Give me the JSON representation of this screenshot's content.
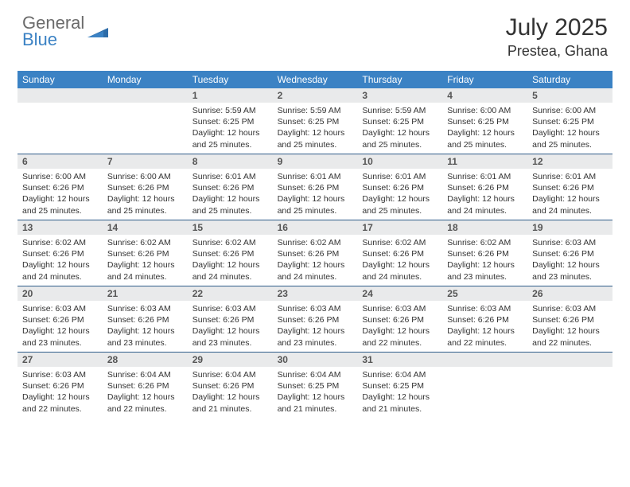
{
  "brand": {
    "general": "General",
    "blue": "Blue"
  },
  "title": {
    "month": "July 2025",
    "location": "Prestea, Ghana"
  },
  "colors": {
    "headerBar": "#3b82c4",
    "weekDivider": "#2f5d8a",
    "dayBar": "#e9eaeb"
  },
  "dow": [
    "Sunday",
    "Monday",
    "Tuesday",
    "Wednesday",
    "Thursday",
    "Friday",
    "Saturday"
  ],
  "weeks": [
    [
      null,
      null,
      {
        "n": "1",
        "sr": "Sunrise: 5:59 AM",
        "ss": "Sunset: 6:25 PM",
        "d1": "Daylight: 12 hours",
        "d2": "and 25 minutes."
      },
      {
        "n": "2",
        "sr": "Sunrise: 5:59 AM",
        "ss": "Sunset: 6:25 PM",
        "d1": "Daylight: 12 hours",
        "d2": "and 25 minutes."
      },
      {
        "n": "3",
        "sr": "Sunrise: 5:59 AM",
        "ss": "Sunset: 6:25 PM",
        "d1": "Daylight: 12 hours",
        "d2": "and 25 minutes."
      },
      {
        "n": "4",
        "sr": "Sunrise: 6:00 AM",
        "ss": "Sunset: 6:25 PM",
        "d1": "Daylight: 12 hours",
        "d2": "and 25 minutes."
      },
      {
        "n": "5",
        "sr": "Sunrise: 6:00 AM",
        "ss": "Sunset: 6:25 PM",
        "d1": "Daylight: 12 hours",
        "d2": "and 25 minutes."
      }
    ],
    [
      {
        "n": "6",
        "sr": "Sunrise: 6:00 AM",
        "ss": "Sunset: 6:26 PM",
        "d1": "Daylight: 12 hours",
        "d2": "and 25 minutes."
      },
      {
        "n": "7",
        "sr": "Sunrise: 6:00 AM",
        "ss": "Sunset: 6:26 PM",
        "d1": "Daylight: 12 hours",
        "d2": "and 25 minutes."
      },
      {
        "n": "8",
        "sr": "Sunrise: 6:01 AM",
        "ss": "Sunset: 6:26 PM",
        "d1": "Daylight: 12 hours",
        "d2": "and 25 minutes."
      },
      {
        "n": "9",
        "sr": "Sunrise: 6:01 AM",
        "ss": "Sunset: 6:26 PM",
        "d1": "Daylight: 12 hours",
        "d2": "and 25 minutes."
      },
      {
        "n": "10",
        "sr": "Sunrise: 6:01 AM",
        "ss": "Sunset: 6:26 PM",
        "d1": "Daylight: 12 hours",
        "d2": "and 25 minutes."
      },
      {
        "n": "11",
        "sr": "Sunrise: 6:01 AM",
        "ss": "Sunset: 6:26 PM",
        "d1": "Daylight: 12 hours",
        "d2": "and 24 minutes."
      },
      {
        "n": "12",
        "sr": "Sunrise: 6:01 AM",
        "ss": "Sunset: 6:26 PM",
        "d1": "Daylight: 12 hours",
        "d2": "and 24 minutes."
      }
    ],
    [
      {
        "n": "13",
        "sr": "Sunrise: 6:02 AM",
        "ss": "Sunset: 6:26 PM",
        "d1": "Daylight: 12 hours",
        "d2": "and 24 minutes."
      },
      {
        "n": "14",
        "sr": "Sunrise: 6:02 AM",
        "ss": "Sunset: 6:26 PM",
        "d1": "Daylight: 12 hours",
        "d2": "and 24 minutes."
      },
      {
        "n": "15",
        "sr": "Sunrise: 6:02 AM",
        "ss": "Sunset: 6:26 PM",
        "d1": "Daylight: 12 hours",
        "d2": "and 24 minutes."
      },
      {
        "n": "16",
        "sr": "Sunrise: 6:02 AM",
        "ss": "Sunset: 6:26 PM",
        "d1": "Daylight: 12 hours",
        "d2": "and 24 minutes."
      },
      {
        "n": "17",
        "sr": "Sunrise: 6:02 AM",
        "ss": "Sunset: 6:26 PM",
        "d1": "Daylight: 12 hours",
        "d2": "and 24 minutes."
      },
      {
        "n": "18",
        "sr": "Sunrise: 6:02 AM",
        "ss": "Sunset: 6:26 PM",
        "d1": "Daylight: 12 hours",
        "d2": "and 23 minutes."
      },
      {
        "n": "19",
        "sr": "Sunrise: 6:03 AM",
        "ss": "Sunset: 6:26 PM",
        "d1": "Daylight: 12 hours",
        "d2": "and 23 minutes."
      }
    ],
    [
      {
        "n": "20",
        "sr": "Sunrise: 6:03 AM",
        "ss": "Sunset: 6:26 PM",
        "d1": "Daylight: 12 hours",
        "d2": "and 23 minutes."
      },
      {
        "n": "21",
        "sr": "Sunrise: 6:03 AM",
        "ss": "Sunset: 6:26 PM",
        "d1": "Daylight: 12 hours",
        "d2": "and 23 minutes."
      },
      {
        "n": "22",
        "sr": "Sunrise: 6:03 AM",
        "ss": "Sunset: 6:26 PM",
        "d1": "Daylight: 12 hours",
        "d2": "and 23 minutes."
      },
      {
        "n": "23",
        "sr": "Sunrise: 6:03 AM",
        "ss": "Sunset: 6:26 PM",
        "d1": "Daylight: 12 hours",
        "d2": "and 23 minutes."
      },
      {
        "n": "24",
        "sr": "Sunrise: 6:03 AM",
        "ss": "Sunset: 6:26 PM",
        "d1": "Daylight: 12 hours",
        "d2": "and 22 minutes."
      },
      {
        "n": "25",
        "sr": "Sunrise: 6:03 AM",
        "ss": "Sunset: 6:26 PM",
        "d1": "Daylight: 12 hours",
        "d2": "and 22 minutes."
      },
      {
        "n": "26",
        "sr": "Sunrise: 6:03 AM",
        "ss": "Sunset: 6:26 PM",
        "d1": "Daylight: 12 hours",
        "d2": "and 22 minutes."
      }
    ],
    [
      {
        "n": "27",
        "sr": "Sunrise: 6:03 AM",
        "ss": "Sunset: 6:26 PM",
        "d1": "Daylight: 12 hours",
        "d2": "and 22 minutes."
      },
      {
        "n": "28",
        "sr": "Sunrise: 6:04 AM",
        "ss": "Sunset: 6:26 PM",
        "d1": "Daylight: 12 hours",
        "d2": "and 22 minutes."
      },
      {
        "n": "29",
        "sr": "Sunrise: 6:04 AM",
        "ss": "Sunset: 6:26 PM",
        "d1": "Daylight: 12 hours",
        "d2": "and 21 minutes."
      },
      {
        "n": "30",
        "sr": "Sunrise: 6:04 AM",
        "ss": "Sunset: 6:25 PM",
        "d1": "Daylight: 12 hours",
        "d2": "and 21 minutes."
      },
      {
        "n": "31",
        "sr": "Sunrise: 6:04 AM",
        "ss": "Sunset: 6:25 PM",
        "d1": "Daylight: 12 hours",
        "d2": "and 21 minutes."
      },
      null,
      null
    ]
  ]
}
